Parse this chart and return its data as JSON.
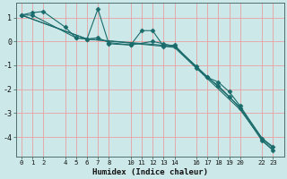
{
  "title": "",
  "xlabel": "Humidex (Indice chaleur)",
  "ylabel": "",
  "bg_color": "#cce8e8",
  "line_color": "#1a6b6b",
  "grid_color": "#e8a0a0",
  "ylim": [
    -4.8,
    1.6
  ],
  "xlim": [
    -0.5,
    24.0
  ],
  "series": [
    {
      "x": [
        0,
        1,
        2,
        4,
        5,
        6,
        7,
        8,
        10,
        11,
        12,
        13,
        14,
        16,
        17,
        18,
        19,
        20,
        22,
        23
      ],
      "y": [
        1.1,
        1.2,
        1.25,
        0.6,
        0.15,
        0.1,
        1.35,
        -0.1,
        -0.15,
        0.45,
        0.45,
        -0.2,
        -0.15,
        -1.1,
        -1.5,
        -1.7,
        -2.1,
        -2.7,
        -4.05,
        -4.4
      ],
      "marker": "D",
      "ms": 2.5
    },
    {
      "x": [
        0,
        1,
        5,
        6,
        7,
        8,
        10,
        12,
        13,
        14,
        16,
        17,
        18,
        19,
        20,
        22,
        23
      ],
      "y": [
        1.1,
        1.1,
        0.15,
        0.1,
        0.15,
        -0.05,
        -0.15,
        0.0,
        -0.1,
        -0.2,
        -1.05,
        -1.5,
        -1.85,
        -2.3,
        -2.8,
        -4.15,
        -4.55
      ],
      "marker": "D",
      "ms": 2.5
    },
    {
      "x": [
        0,
        6,
        14,
        20,
        22,
        23
      ],
      "y": [
        1.1,
        0.1,
        -0.25,
        -2.85,
        -4.1,
        -4.55
      ],
      "marker": null,
      "ms": 0
    },
    {
      "x": [
        0,
        6,
        14,
        20,
        22,
        23
      ],
      "y": [
        1.1,
        0.1,
        -0.2,
        -2.75,
        -4.05,
        -4.45
      ],
      "marker": null,
      "ms": 0
    }
  ],
  "yticks": [
    1,
    0,
    -1,
    -2,
    -3,
    -4
  ],
  "xticks": [
    0,
    1,
    2,
    4,
    5,
    6,
    7,
    8,
    10,
    11,
    12,
    13,
    14,
    16,
    17,
    18,
    19,
    20,
    22,
    23
  ],
  "xtick_labels": [
    "0",
    "1",
    "2",
    "4",
    "5",
    "6",
    "7",
    "8",
    "10",
    "11",
    "12",
    "13",
    "14",
    "16",
    "17",
    "18",
    "19",
    "20",
    "22",
    "23"
  ]
}
